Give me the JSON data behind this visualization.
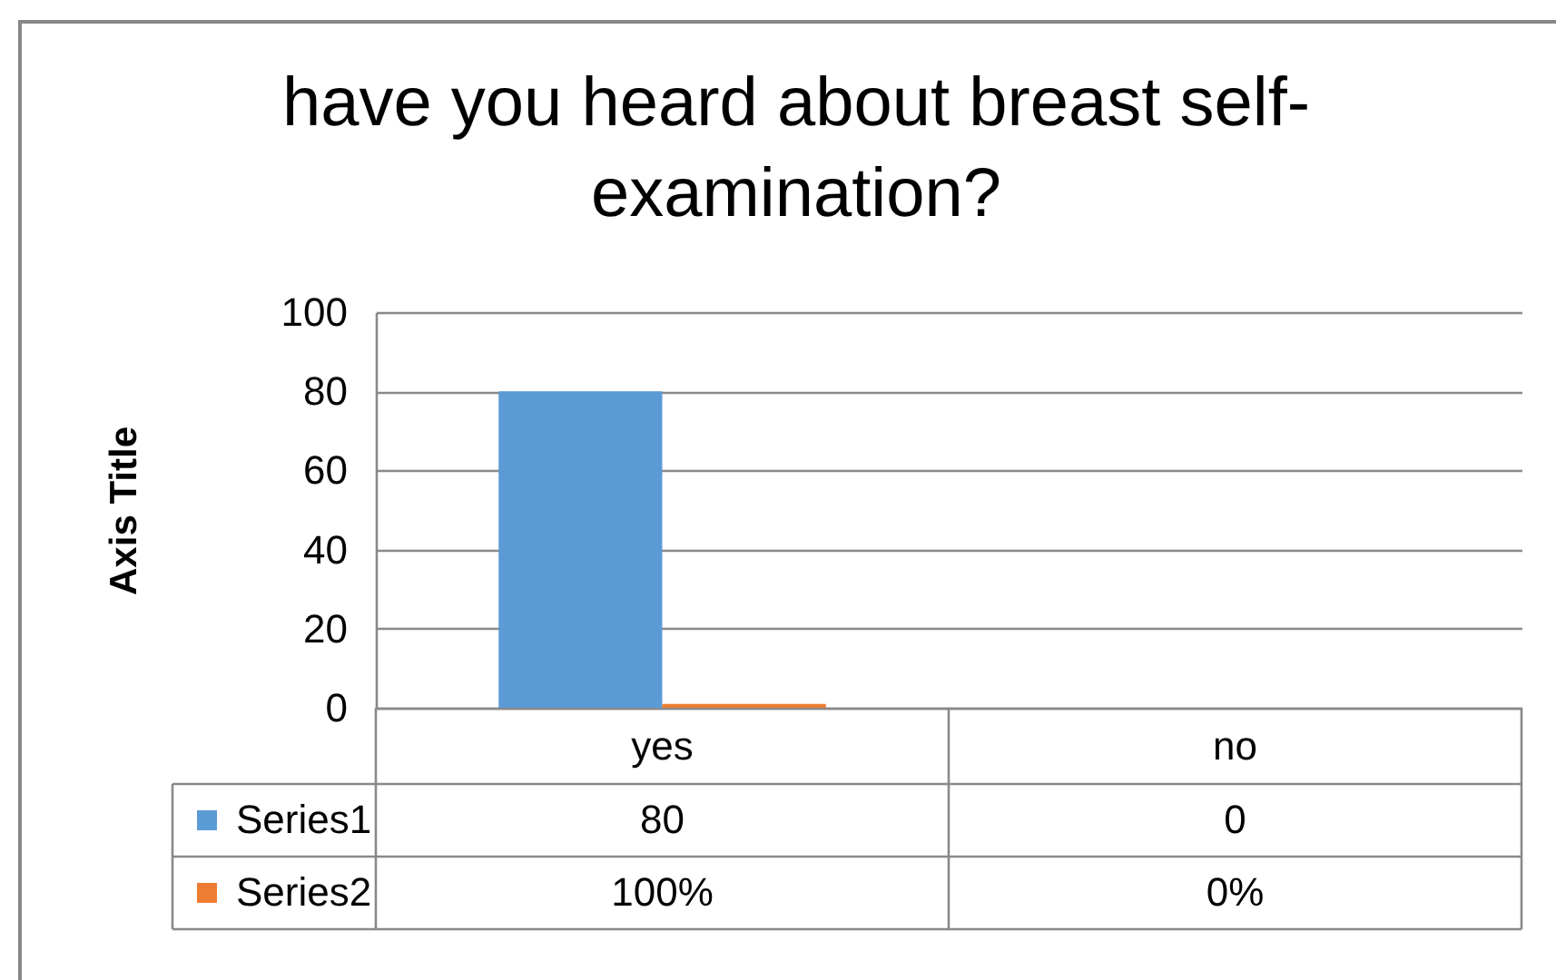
{
  "chart_data": {
    "type": "bar",
    "title": "have you heard about breast self-examination?",
    "ylabel": "Axis Title",
    "categories": [
      "yes",
      "no"
    ],
    "series": [
      {
        "name": "Series1",
        "color": "#5b9bd5",
        "values": [
          80,
          0
        ],
        "value_labels": [
          "80",
          "0"
        ]
      },
      {
        "name": "Series2",
        "color": "#ed7d31",
        "values": [
          1,
          0
        ],
        "value_labels": [
          "100%",
          "0%"
        ]
      }
    ],
    "ylim": [
      0,
      100
    ],
    "yticks": [
      0,
      20,
      40,
      60,
      80,
      100
    ],
    "grid": "y",
    "legend": "bottom left"
  }
}
